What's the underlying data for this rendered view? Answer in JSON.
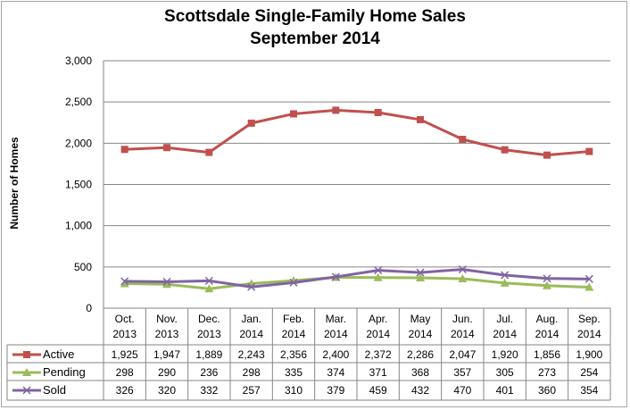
{
  "chart_data": {
    "type": "line",
    "title": "Scottsdale Single-Family Home Sales",
    "subtitle": "September 2014",
    "ylabel": "Number of Homes",
    "xlabel": "",
    "ylim": [
      0,
      3000
    ],
    "yticks": [
      "0",
      "500",
      "1,000",
      "1,500",
      "2,000",
      "2,500",
      "3,000"
    ],
    "ytick_values": [
      0,
      500,
      1000,
      1500,
      2000,
      2500,
      3000
    ],
    "grid": true,
    "legend": "data-table",
    "categories": [
      [
        "Oct.",
        "2013"
      ],
      [
        "Nov.",
        "2013"
      ],
      [
        "Dec.",
        "2013"
      ],
      [
        "Jan.",
        "2014"
      ],
      [
        "Feb.",
        "2014"
      ],
      [
        "Mar.",
        "2014"
      ],
      [
        "Apr.",
        "2014"
      ],
      [
        "May",
        "2014"
      ],
      [
        "Jun.",
        "2014"
      ],
      [
        "Jul.",
        "2014"
      ],
      [
        "Aug.",
        "2014"
      ],
      [
        "Sep.",
        "2014"
      ]
    ],
    "series": [
      {
        "name": "Active",
        "color": "#c0504d",
        "marker": "square",
        "values": [
          1925,
          1947,
          1889,
          2243,
          2356,
          2400,
          2372,
          2286,
          2047,
          1920,
          1856,
          1900
        ],
        "labels": [
          "1,925",
          "1,947",
          "1,889",
          "2,243",
          "2,356",
          "2,400",
          "2,372",
          "2,286",
          "2,047",
          "1,920",
          "1,856",
          "1,900"
        ]
      },
      {
        "name": "Pending",
        "color": "#9bbb59",
        "marker": "triangle",
        "values": [
          298,
          290,
          236,
          298,
          335,
          374,
          371,
          368,
          357,
          305,
          273,
          254
        ],
        "labels": [
          "298",
          "290",
          "236",
          "298",
          "335",
          "374",
          "371",
          "368",
          "357",
          "305",
          "273",
          "254"
        ]
      },
      {
        "name": "Sold",
        "color": "#8064a2",
        "marker": "x",
        "values": [
          326,
          320,
          332,
          257,
          310,
          379,
          459,
          432,
          470,
          401,
          360,
          354
        ],
        "labels": [
          "326",
          "320",
          "332",
          "257",
          "310",
          "379",
          "459",
          "432",
          "470",
          "401",
          "360",
          "354"
        ]
      }
    ]
  }
}
